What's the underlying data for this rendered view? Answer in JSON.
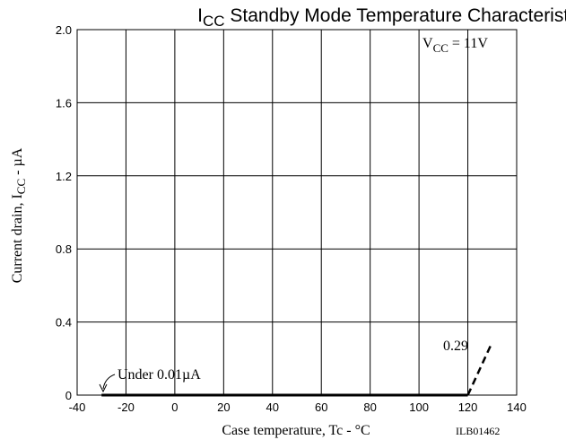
{
  "chart_data": {
    "type": "line",
    "title_main": "I",
    "title_sub": "CC",
    "title_rest": " Standby Mode Temperature Characteristics",
    "xlabel": "Case temperature, Tc - °C",
    "ylabel_main": "Current drain, I",
    "ylabel_sub": "CC",
    "ylabel_rest": " - µA",
    "xlim": [
      -40,
      140
    ],
    "ylim": [
      0,
      2.0
    ],
    "x_ticks": [
      -40,
      -20,
      0,
      20,
      40,
      60,
      80,
      100,
      120,
      140
    ],
    "x_tick_labels": [
      "-40",
      "-20",
      "0",
      "20",
      "40",
      "60",
      "80",
      "100",
      "120",
      "140"
    ],
    "y_ticks": [
      0,
      0.4,
      0.8,
      1.2,
      1.6,
      2.0
    ],
    "y_tick_labels": [
      "0",
      "0.4",
      "0.8",
      "1.2",
      "1.6",
      "2.0"
    ],
    "grid": true,
    "series": [
      {
        "style": "solid",
        "x": [
          -30,
          120
        ],
        "y": [
          0,
          0
        ]
      },
      {
        "style": "dashed",
        "x": [
          120,
          130
        ],
        "y": [
          0,
          0.29
        ]
      }
    ],
    "annotations": {
      "vcc_main": "V",
      "vcc_sub": "CC",
      "vcc_rest": " = 11V",
      "under": "Under 0.01µA",
      "value_029": "0.29",
      "code": "ILB01462"
    }
  }
}
